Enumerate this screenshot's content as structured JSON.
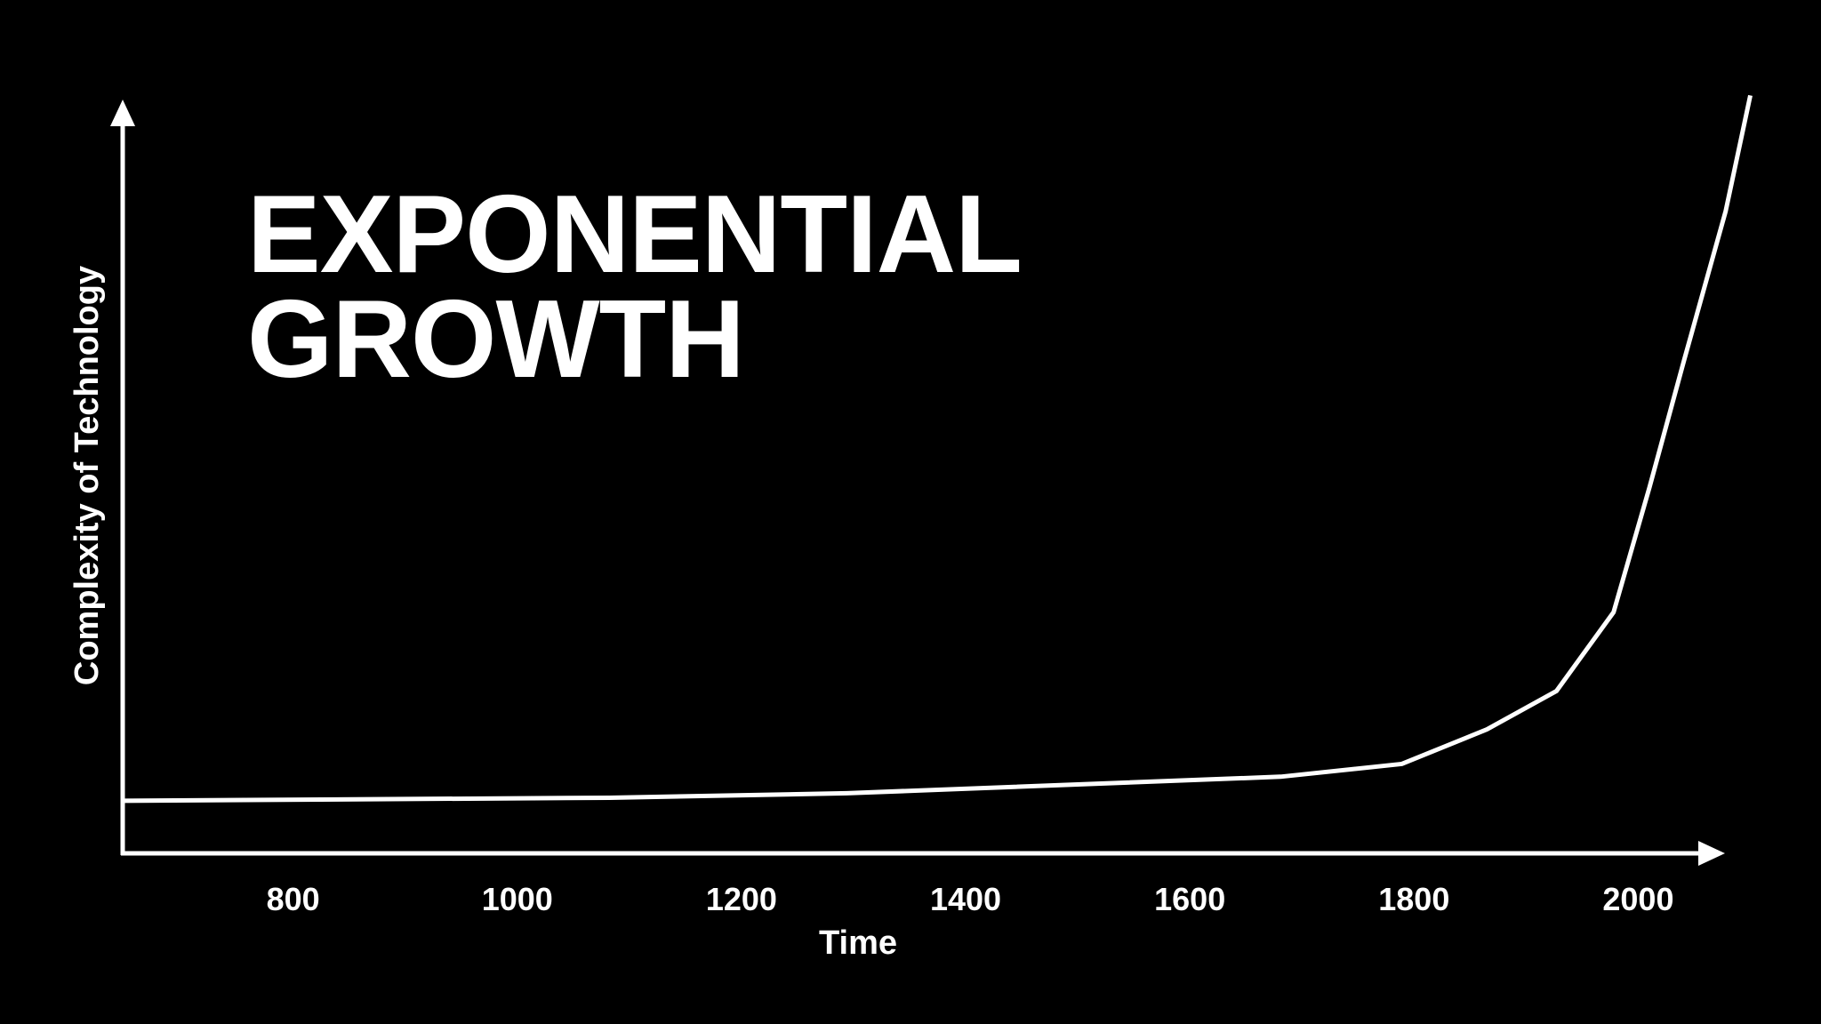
{
  "chart_data": {
    "type": "line",
    "title": "EXPONENTIAL GROWTH",
    "x_label": "Time",
    "y_label": "Complexity of Technology",
    "x": [
      648,
      1082,
      1294,
      1681,
      1789,
      1865,
      1927,
      1978,
      2010,
      2041,
      2078,
      2100
    ],
    "series": [
      {
        "color": "#ffffff",
        "values": [
          7.0,
          7.4,
          8.0,
          10.2,
          11.9,
          16.5,
          21.6,
          32.1,
          48.7,
          65.7,
          85.5,
          100.9
        ]
      }
    ],
    "xlim": [
      648,
      2075
    ],
    "xticks": [
      800,
      1000,
      1200,
      1400,
      1600,
      1800,
      2000
    ],
    "ylim": [
      0,
      100
    ],
    "grid": false
  }
}
